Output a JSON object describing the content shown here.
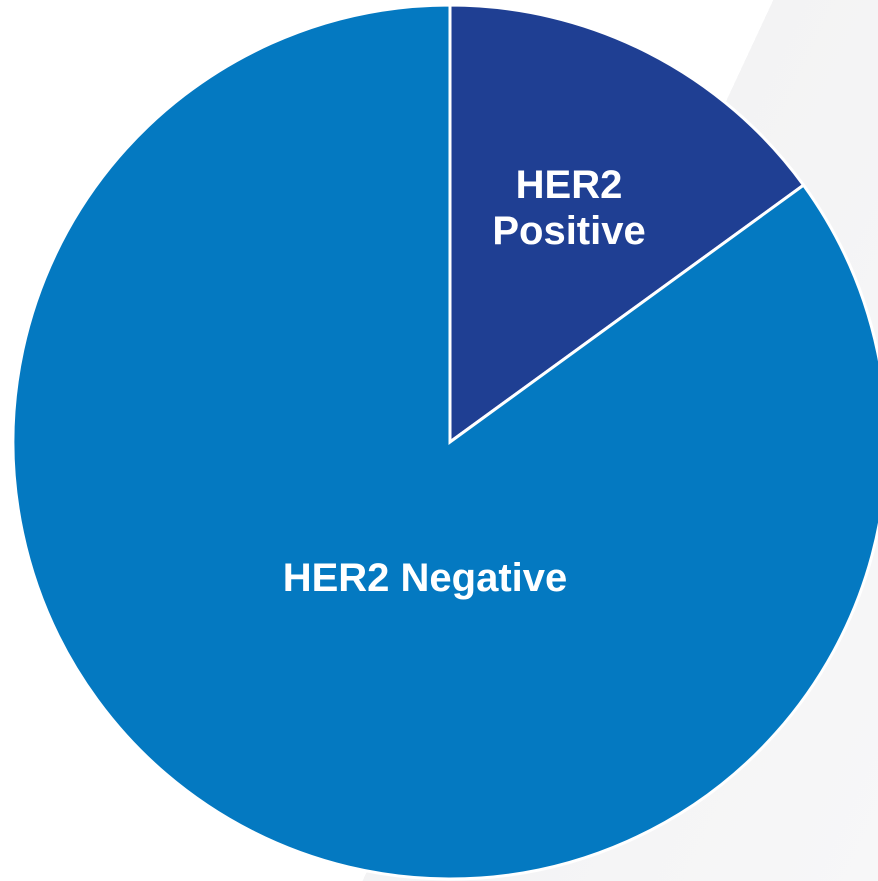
{
  "chart_data": {
    "type": "pie",
    "categories": [
      "HER2 Positive",
      "HER2 Negative"
    ],
    "values": [
      15,
      85
    ],
    "colors": [
      "#1f3f93",
      "#0479c1"
    ]
  }
}
